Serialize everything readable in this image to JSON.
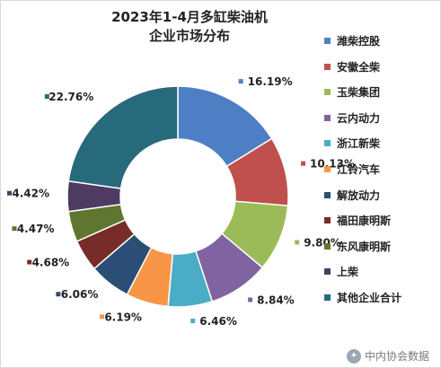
{
  "title_line1": "2023年1-4月多缸柴油机",
  "title_line2": "企业市场分布",
  "watermark": "中内协会数据",
  "chart_data": {
    "type": "donut",
    "title": "2023年1-4月多缸柴油机企业市场分布",
    "legend_position": "right",
    "slices": [
      {
        "name": "潍柴控股",
        "value": 16.19,
        "label": "16.19%",
        "color": "#4e7fc4"
      },
      {
        "name": "安徽全柴",
        "value": 10.13,
        "label": "10.13%",
        "color": "#c0504d"
      },
      {
        "name": "玉柴集团",
        "value": 9.8,
        "label": "9.80%",
        "color": "#9bbb59"
      },
      {
        "name": "云内动力",
        "value": 8.84,
        "label": "8.84%",
        "color": "#8064a2"
      },
      {
        "name": "浙江新柴",
        "value": 6.46,
        "label": "6.46%",
        "color": "#4bacc6"
      },
      {
        "name": "江铃汽车",
        "value": 6.19,
        "label": "6.19%",
        "color": "#f79646"
      },
      {
        "name": "解放动力",
        "value": 6.06,
        "label": "6.06%",
        "color": "#2c4d75"
      },
      {
        "name": "福田康明斯",
        "value": 4.68,
        "label": "4.68%",
        "color": "#772c2a"
      },
      {
        "name": "东风康明斯",
        "value": 4.47,
        "label": "4.47%",
        "color": "#5f7530"
      },
      {
        "name": "上柴",
        "value": 4.42,
        "label": "4.42%",
        "color": "#4d3b62"
      },
      {
        "name": "其他企业合计",
        "value": 22.76,
        "label": "22.76%",
        "color": "#276a7c"
      }
    ]
  }
}
